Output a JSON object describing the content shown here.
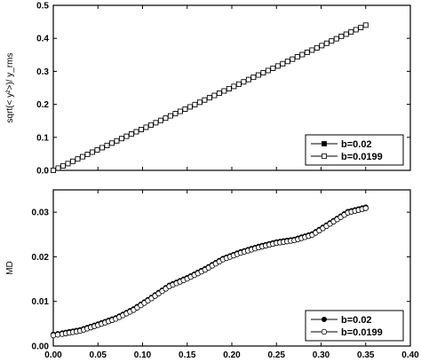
{
  "chart_data": [
    {
      "type": "scatter",
      "ylabel": "sqrt(< y²>)/ y_rms",
      "xlim": [
        0.0,
        0.4
      ],
      "ylim": [
        0.0,
        0.5
      ],
      "yticks": [
        "0.0",
        "0.1",
        "0.2",
        "0.3",
        "0.4",
        "0.5"
      ],
      "legend_position": "bottom-right",
      "series": [
        {
          "name": "b=0.02",
          "marker": "filled-square",
          "x": [
            0.0,
            0.35
          ],
          "y": [
            0.0,
            0.44
          ]
        },
        {
          "name": "b=0.0199",
          "marker": "open-square",
          "x": [
            0.0,
            0.35
          ],
          "y": [
            0.0,
            0.44
          ]
        }
      ]
    },
    {
      "type": "scatter",
      "xlabel": "",
      "ylabel": "MD",
      "xlim": [
        0.0,
        0.4
      ],
      "ylim": [
        0.0,
        0.035
      ],
      "xticks": [
        "0.00",
        "0.05",
        "0.10",
        "0.15",
        "0.20",
        "0.25",
        "0.30",
        "0.35",
        "0.40"
      ],
      "yticks": [
        "0.00",
        "0.01",
        "0.02",
        "0.03"
      ],
      "legend_position": "bottom-right",
      "series": [
        {
          "name": "b=0.02",
          "marker": "filled-circle",
          "x": [
            0.0,
            0.01,
            0.03,
            0.05,
            0.07,
            0.09,
            0.11,
            0.13,
            0.15,
            0.17,
            0.19,
            0.21,
            0.23,
            0.25,
            0.27,
            0.29,
            0.31,
            0.33,
            0.35
          ],
          "y": [
            0.0025,
            0.0028,
            0.0035,
            0.0048,
            0.0062,
            0.0082,
            0.0108,
            0.0135,
            0.0152,
            0.0172,
            0.0195,
            0.021,
            0.0222,
            0.0232,
            0.0238,
            0.025,
            0.0275,
            0.03,
            0.031
          ]
        },
        {
          "name": "b=0.0199",
          "marker": "open-circle",
          "x": [
            0.0,
            0.01,
            0.03,
            0.05,
            0.07,
            0.09,
            0.11,
            0.13,
            0.15,
            0.17,
            0.19,
            0.21,
            0.23,
            0.25,
            0.27,
            0.29,
            0.31,
            0.33,
            0.35
          ],
          "y": [
            0.0025,
            0.0028,
            0.0035,
            0.0048,
            0.0062,
            0.0082,
            0.0108,
            0.0135,
            0.0152,
            0.0172,
            0.0195,
            0.021,
            0.0222,
            0.0232,
            0.0238,
            0.025,
            0.0275,
            0.03,
            0.031
          ]
        }
      ]
    }
  ]
}
